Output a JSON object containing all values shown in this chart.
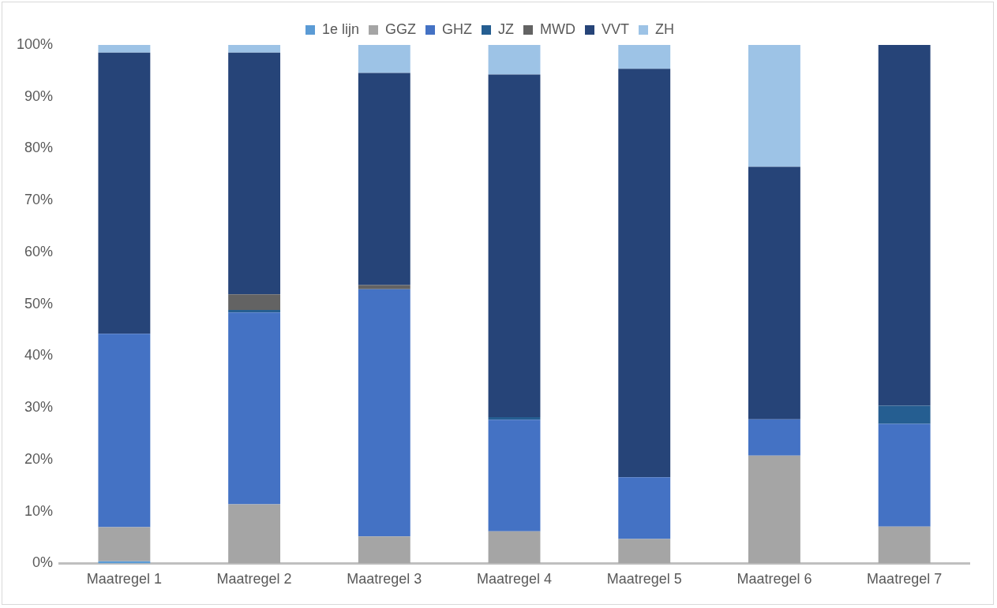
{
  "chart_data": {
    "type": "bar",
    "stacked": true,
    "legend": "top",
    "grid": false,
    "categories": [
      "Maatregel 1",
      "Maatregel 2",
      "Maatregel 3",
      "Maatregel 4",
      "Maatregel 5",
      "Maatregel 6",
      "Maatregel 7"
    ],
    "ylim": [
      0,
      100
    ],
    "yticks": [
      {
        "value": 0,
        "label": "0%"
      },
      {
        "value": 10,
        "label": "10%"
      },
      {
        "value": 20,
        "label": "20%"
      },
      {
        "value": 30,
        "label": "30%"
      },
      {
        "value": 40,
        "label": "40%"
      },
      {
        "value": 50,
        "label": "50%"
      },
      {
        "value": 60,
        "label": "60%"
      },
      {
        "value": 70,
        "label": "70%"
      },
      {
        "value": 80,
        "label": "80%"
      },
      {
        "value": 90,
        "label": "90%"
      },
      {
        "value": 100,
        "label": "100%"
      }
    ],
    "series": [
      {
        "name": "1e lijn",
        "color": "#5b9bd5",
        "values": [
          0.4,
          0,
          0,
          0,
          0,
          0,
          0
        ]
      },
      {
        "name": "GGZ",
        "color": "#a5a5a5",
        "values": [
          6.6,
          11.4,
          5.2,
          6.2,
          4.7,
          20.8,
          7.1
        ]
      },
      {
        "name": "GHZ",
        "color": "#4472c4",
        "values": [
          37.3,
          37.0,
          47.7,
          21.5,
          11.9,
          7.0,
          19.8
        ]
      },
      {
        "name": "JZ",
        "color": "#255e91",
        "values": [
          0,
          0.5,
          0,
          0.5,
          0,
          0,
          3.5
        ]
      },
      {
        "name": "MWD",
        "color": "#636363",
        "values": [
          0,
          3.0,
          0.8,
          0,
          0,
          0,
          0
        ]
      },
      {
        "name": "VVT",
        "color": "#264478",
        "values": [
          54.2,
          46.6,
          40.9,
          66.1,
          78.8,
          48.7,
          69.6
        ]
      },
      {
        "name": "ZH",
        "color": "#9dc3e6",
        "values": [
          1.5,
          1.5,
          5.4,
          5.7,
          4.6,
          23.5,
          0
        ]
      }
    ]
  }
}
